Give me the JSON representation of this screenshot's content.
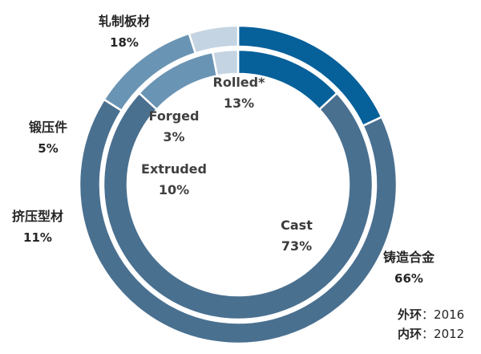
{
  "chart_data": {
    "type": "pie",
    "subtype": "nested-donut",
    "rings": [
      {
        "ring": "outer",
        "legend_label": "外环",
        "legend_value": "2016",
        "slices": [
          {
            "label": "轧制板材",
            "value": 18,
            "value_text": "18%",
            "color": "#06609a"
          },
          {
            "label": "铸造合金",
            "value": 66,
            "value_text": "66%",
            "color": "#4a7090"
          },
          {
            "label": "挤压型材",
            "value": 11,
            "value_text": "11%",
            "color": "#6a94b4"
          },
          {
            "label": "锻压件",
            "value": 5,
            "value_text": "5%",
            "color": "#c4d4e2"
          }
        ]
      },
      {
        "ring": "inner",
        "legend_label": "内环",
        "legend_value": "2012",
        "slices": [
          {
            "label": "Rolled*",
            "value": 13,
            "value_text": "13%",
            "color": "#06609a"
          },
          {
            "label": "Cast",
            "value": 73,
            "value_text": "73%",
            "color": "#4a7090"
          },
          {
            "label": "Extruded",
            "value": 10,
            "value_text": "10%",
            "color": "#6a94b4"
          },
          {
            "label": "Forged",
            "value": 3,
            "value_text": "3%",
            "color": "#c4d4e2"
          }
        ]
      }
    ],
    "legend": {
      "separator": "：",
      "position": "bottom-right"
    }
  }
}
